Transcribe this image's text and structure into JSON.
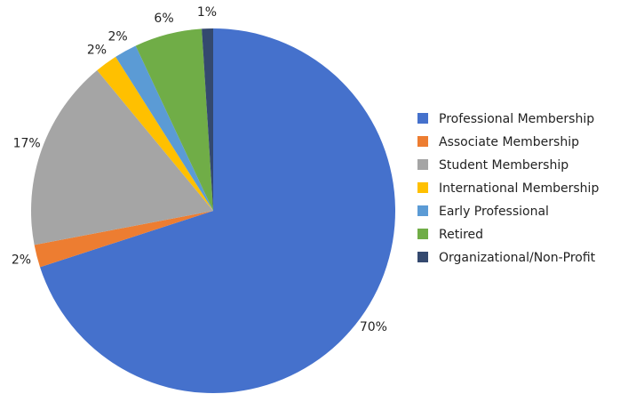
{
  "chart_data": {
    "type": "pie",
    "categories": [
      "Professional Membership",
      "Associate Membership",
      "Student Membership",
      "International Membership",
      "Early Professional",
      "Retired",
      "Organizational/Non-Profit"
    ],
    "values": [
      70,
      2,
      17,
      2,
      2,
      6,
      1
    ],
    "value_labels": [
      "70%",
      "2%",
      "17%",
      "2%",
      "2%",
      "6%",
      "1%"
    ],
    "colors": [
      "#4571cc",
      "#ed7d31",
      "#a5a5a5",
      "#ffc000",
      "#5b9bd5",
      "#70ad47",
      "#34496f"
    ],
    "legend": "right"
  }
}
